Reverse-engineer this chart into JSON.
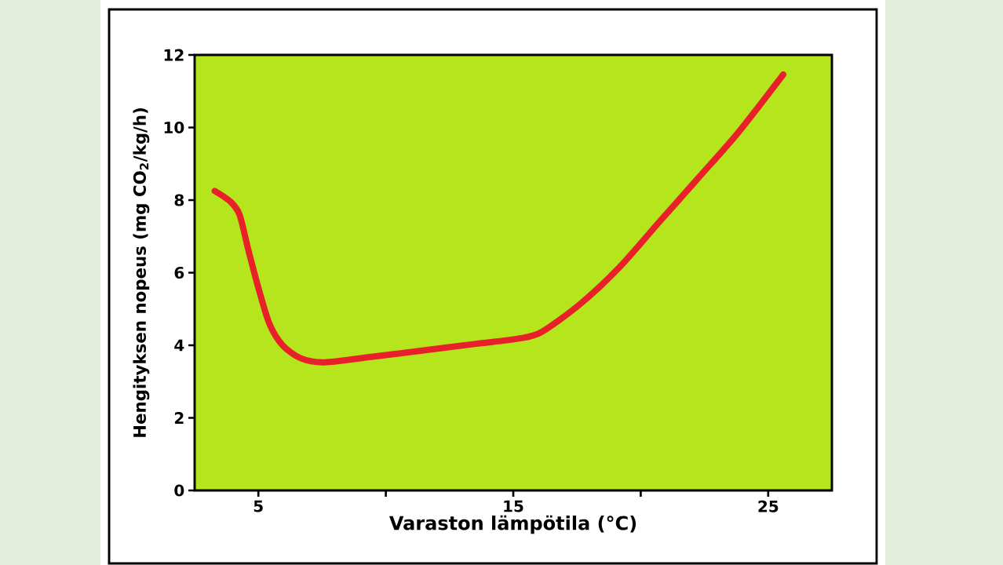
{
  "chart_data": {
    "type": "line",
    "xlabel": "Varaston lämpötila (°C)",
    "ylabel": "Hengityksen nopeus (mg CO$_{2}$/kg/h)",
    "x": [
      3.29,
      3.9,
      4.26,
      4.62,
      5.03,
      5.44,
      5.95,
      6.67,
      7.59,
      9.44,
      11.49,
      13.54,
      15.18,
      16.1,
      17.65,
      19.18,
      20.72,
      22.26,
      23.8,
      25.59
    ],
    "series": [
      {
        "color": "#e8202a",
        "values": [
          8.25,
          7.96,
          7.6,
          6.59,
          5.51,
          4.58,
          4.0,
          3.64,
          3.53,
          3.68,
          3.86,
          4.04,
          4.18,
          4.36,
          5.15,
          6.16,
          7.39,
          8.61,
          9.84,
          11.46
        ]
      }
    ],
    "xlim": [
      2.5,
      27.5
    ],
    "ylim": [
      0,
      12
    ],
    "xticks": [
      5,
      {
        "value": 10,
        "label": null
      },
      15,
      {
        "value": 20,
        "label": null
      },
      25
    ],
    "yticks": [
      0,
      2,
      4,
      6,
      8,
      10,
      12
    ],
    "grid": false,
    "marker": "none",
    "line_style": "solid"
  }
}
